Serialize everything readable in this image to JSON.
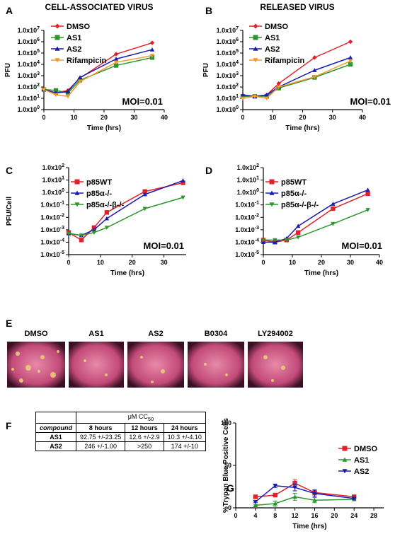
{
  "chart_data": [
    {
      "type": "line",
      "letter": "A",
      "title": "CELL-ASSOCIATED VIRUS",
      "x_label": "Time (hrs)",
      "y_label": "PFU",
      "annotation": "MOI=0.01",
      "log_y": true,
      "x": [
        0,
        4,
        8,
        12,
        24,
        36
      ],
      "xlim": [
        0,
        40
      ],
      "xticks": [
        0,
        10,
        20,
        30,
        40
      ],
      "ylim": [
        1,
        10000000
      ],
      "yticks": [
        {
          "value": 10000000,
          "label": "1.0x10",
          "exp": "7"
        },
        {
          "value": 1000000,
          "label": "1.0x10",
          "exp": "6"
        },
        {
          "value": 100000,
          "label": "1.0x10",
          "exp": "5"
        },
        {
          "value": 10000,
          "label": "1.0x10",
          "exp": "4"
        },
        {
          "value": 1000,
          "label": "1.0x10",
          "exp": "3"
        },
        {
          "value": 100,
          "label": "1.0x10",
          "exp": "2"
        },
        {
          "value": 10,
          "label": "1.0x10",
          "exp": "1"
        },
        {
          "value": 1,
          "label": "1.0x10",
          "exp": "0"
        }
      ],
      "series": [
        {
          "name": "DMSO",
          "color": "#e3202a",
          "marker": "diamond",
          "values": [
            60,
            30,
            50,
            600,
            80000,
            800000
          ]
        },
        {
          "name": "AS1",
          "color": "#2e962e",
          "marker": "square",
          "values": [
            60,
            50,
            30,
            400,
            8000,
            40000
          ]
        },
        {
          "name": "AS2",
          "color": "#1c1cb0",
          "marker": "triangle",
          "values": [
            60,
            30,
            40,
            700,
            30000,
            200000
          ]
        },
        {
          "name": "Rifampicin",
          "color": "#f39a2c",
          "marker": "tridown",
          "values": [
            60,
            20,
            15,
            300,
            15000,
            60000
          ]
        }
      ]
    },
    {
      "type": "line",
      "letter": "B",
      "title": "RELEASED VIRUS",
      "x_label": "Time (hrs)",
      "y_label": "PFU",
      "annotation": "MOI=0.01",
      "log_y": true,
      "x": [
        0,
        4,
        8,
        12,
        24,
        36
      ],
      "xlim": [
        0,
        40
      ],
      "xticks": [
        0,
        10,
        20,
        30,
        40
      ],
      "ylim": [
        1,
        10000000
      ],
      "yticks": [
        {
          "value": 10000000,
          "label": "1.0x10",
          "exp": "7"
        },
        {
          "value": 1000000,
          "label": "1.0x10",
          "exp": "6"
        },
        {
          "value": 100000,
          "label": "1.0x10",
          "exp": "5"
        },
        {
          "value": 10000,
          "label": "1.0x10",
          "exp": "4"
        },
        {
          "value": 1000,
          "label": "1.0x10",
          "exp": "3"
        },
        {
          "value": 100,
          "label": "1.0x10",
          "exp": "2"
        },
        {
          "value": 10,
          "label": "1.0x10",
          "exp": "1"
        },
        {
          "value": 1,
          "label": "1.0x10",
          "exp": "0"
        }
      ],
      "series": [
        {
          "name": "DMSO",
          "color": "#e3202a",
          "marker": "diamond",
          "values": [
            15,
            15,
            20,
            200,
            40000,
            1000000
          ]
        },
        {
          "name": "AS1",
          "color": "#2e962e",
          "marker": "square",
          "values": [
            15,
            15,
            15,
            80,
            700,
            10000
          ]
        },
        {
          "name": "AS2",
          "color": "#1c1cb0",
          "marker": "triangle",
          "values": [
            20,
            15,
            20,
            100,
            3000,
            40000
          ]
        },
        {
          "name": "Rifampicin",
          "color": "#f39a2c",
          "marker": "tridown",
          "values": [
            10,
            15,
            10,
            100,
            800,
            20000
          ]
        }
      ]
    },
    {
      "type": "line",
      "letter": "C",
      "x_label": "Time (hrs)",
      "y_label": "PFU/Cell",
      "annotation": "MOI=0.01",
      "log_y": true,
      "x": [
        0,
        4,
        8,
        12,
        24,
        36
      ],
      "xlim": [
        0,
        37
      ],
      "xticks": [
        0,
        10,
        20,
        30
      ],
      "ylim": [
        1e-05,
        100
      ],
      "yticks": [
        {
          "value": 100,
          "label": "1.0x10",
          "exp": "2"
        },
        {
          "value": 10,
          "label": "1.0x10",
          "exp": "1"
        },
        {
          "value": 1,
          "label": "1.0x10",
          "exp": "0"
        },
        {
          "value": 0.1,
          "label": "1.0x10",
          "exp": "-1"
        },
        {
          "value": 0.01,
          "label": "1.0x10",
          "exp": "-2"
        },
        {
          "value": 0.001,
          "label": "1.0x10",
          "exp": "-3"
        },
        {
          "value": 0.0001,
          "label": "1.0x10",
          "exp": "-4"
        },
        {
          "value": 1e-05,
          "label": "1.0x10",
          "exp": "-5"
        }
      ],
      "series": [
        {
          "name": "p85WT",
          "color": "#e3202a",
          "marker": "square",
          "values": [
            0.0006,
            0.00015,
            0.0015,
            0.025,
            1.2,
            6
          ]
        },
        {
          "name": "p85α-/-",
          "color": "#1c1cb0",
          "marker": "triangle",
          "values": [
            0.0005,
            0.00035,
            0.001,
            0.008,
            0.7,
            9
          ]
        },
        {
          "name": "p85α-/-β-/-",
          "color": "#2e962e",
          "marker": "tridown",
          "values": [
            0.0005,
            0.00035,
            0.0006,
            0.0015,
            0.05,
            0.4
          ]
        }
      ]
    },
    {
      "type": "line",
      "letter": "D",
      "x_label": "Time (hrs)",
      "annotation": "MOI=0.01",
      "log_y": true,
      "x": [
        0,
        4,
        8,
        12,
        24,
        36
      ],
      "xlim": [
        0,
        40
      ],
      "xticks": [
        0,
        10,
        20,
        30,
        40
      ],
      "ylim": [
        1e-05,
        100
      ],
      "yticks": [
        {
          "value": 100,
          "label": "1.0x10",
          "exp": "2"
        },
        {
          "value": 10,
          "label": "1.0x10",
          "exp": "1"
        },
        {
          "value": 1,
          "label": "1.0x10",
          "exp": "0"
        },
        {
          "value": 0.1,
          "label": "1.0x10",
          "exp": "-1"
        },
        {
          "value": 0.01,
          "label": "1.0x10",
          "exp": "-2"
        },
        {
          "value": 0.001,
          "label": "1.0x10",
          "exp": "-3"
        },
        {
          "value": 0.0001,
          "label": "1.0x10",
          "exp": "-4"
        },
        {
          "value": 1e-05,
          "label": "1.0x10",
          "exp": "-5"
        }
      ],
      "series": [
        {
          "name": "p85WT",
          "color": "#e3202a",
          "marker": "square",
          "values": [
            0.00015,
            0.0001,
            0.00015,
            0.0006,
            0.05,
            0.8
          ]
        },
        {
          "name": "p85α-/-",
          "color": "#1c1cb0",
          "marker": "triangle",
          "values": [
            0.0001,
            0.0001,
            0.0002,
            0.002,
            0.12,
            1.6
          ]
        },
        {
          "name": "p85α-/-β-/-",
          "color": "#2e962e",
          "marker": "tridown",
          "values": [
            0.00015,
            0.00015,
            0.00015,
            0.00025,
            0.003,
            0.04
          ]
        }
      ]
    },
    {
      "type": "line",
      "letter": "G",
      "x_label": "Time (hrs)",
      "y_label": "%Trypan Blue Positive Cells",
      "log_y": false,
      "x": [
        4,
        8,
        12,
        16,
        24
      ],
      "xlim": [
        0,
        30
      ],
      "xticks": [
        0,
        4,
        8,
        12,
        16,
        20,
        24,
        28
      ],
      "ylim": [
        0,
        100
      ],
      "yticks": [
        100,
        50,
        0
      ],
      "series": [
        {
          "name": "DMSO",
          "color": "#e3202a",
          "marker": "square",
          "values": [
            13,
            15,
            29,
            18,
            13
          ],
          "errors": [
            1,
            1,
            4,
            3,
            1
          ]
        },
        {
          "name": "AS1",
          "color": "#2e962e",
          "marker": "triangle",
          "values": [
            3,
            5,
            13,
            9,
            10
          ],
          "errors": [
            1,
            3,
            4,
            3,
            1
          ]
        },
        {
          "name": "AS2",
          "color": "#1c1cb0",
          "marker": "tridown",
          "values": [
            7,
            26,
            24,
            17,
            11
          ],
          "errors": [
            1,
            2,
            4,
            4,
            1
          ]
        }
      ]
    }
  ],
  "panel_e": {
    "letter": "E",
    "images": [
      {
        "label": "DMSO"
      },
      {
        "label": "AS1"
      },
      {
        "label": "AS2"
      },
      {
        "label": "B0304"
      },
      {
        "label": "LY294002"
      }
    ]
  },
  "panel_f": {
    "letter": "F",
    "header": "μM CC",
    "header_sub": "50",
    "columns": [
      "compound",
      "8 hours",
      "12 hours",
      "24 hours"
    ],
    "rows": [
      [
        "AS1",
        "92.75 +/-23.25",
        "12.6 +/-2.9",
        "10.3 +/-4.10"
      ],
      [
        "AS2",
        "246 +/-1.00",
        ">250",
        "174 +/-10"
      ]
    ]
  }
}
